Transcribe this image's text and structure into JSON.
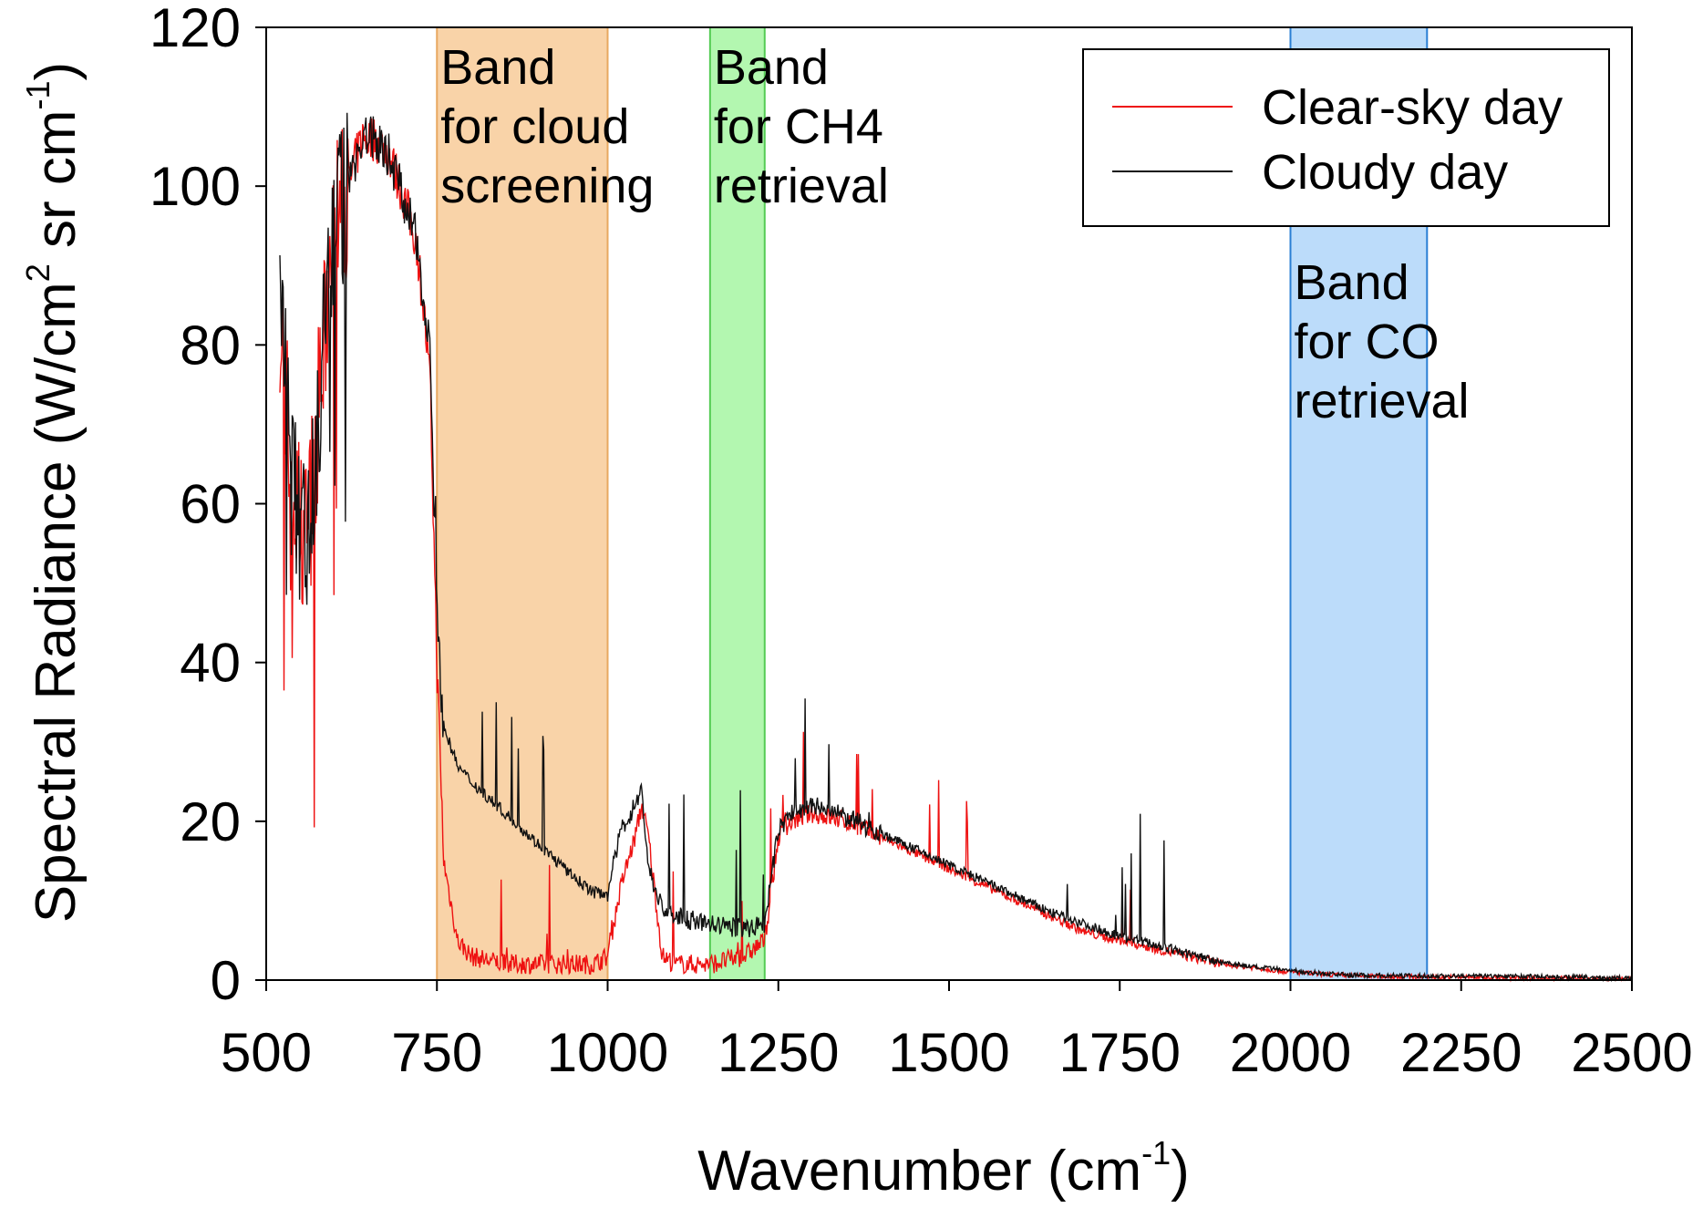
{
  "chart_data": {
    "type": "line",
    "title": "",
    "xlabel": "Wavenumber (cm",
    "xlabel_sup": "-1",
    "xlabel_close": ")",
    "ylabel": "Spectral Radiance (W/cm",
    "ylabel_sup1": "2",
    "ylabel_mid": " sr cm",
    "ylabel_sup2": "-1",
    "ylabel_close": ")",
    "xlim": [
      500,
      2500
    ],
    "ylim": [
      0,
      120
    ],
    "xticks": [
      500,
      750,
      1000,
      1250,
      1500,
      1750,
      2000,
      2250,
      2500
    ],
    "yticks": [
      0,
      20,
      40,
      60,
      80,
      100,
      120
    ],
    "grid": false,
    "legend_position": "top-right",
    "bands": [
      {
        "name": "cloud-screening-band",
        "x0": 750,
        "x1": 1000,
        "fill": "#f9d3a8",
        "stroke": "#e8a860",
        "lines": [
          "Band",
          "for cloud",
          "screening"
        ]
      },
      {
        "name": "ch4-retrieval-band",
        "x0": 1150,
        "x1": 1230,
        "fill": "#b3f7b0",
        "stroke": "#55cc55",
        "lines": [
          "Band",
          "for CH4",
          "retrieval"
        ]
      },
      {
        "name": "co-retrieval-band",
        "x0": 2000,
        "x1": 2200,
        "fill": "#bcdcfa",
        "stroke": "#2a7fd4",
        "lines": [
          "Band",
          "for CO",
          "retrieval"
        ]
      }
    ],
    "series": [
      {
        "name": "Clear-sky day",
        "color": "#ee1111",
        "x": [
          520,
          540,
          560,
          580,
          600,
          620,
          640,
          660,
          680,
          700,
          720,
          730,
          740,
          750,
          760,
          780,
          800,
          850,
          900,
          950,
          980,
          1000,
          1020,
          1040,
          1050,
          1060,
          1080,
          1100,
          1150,
          1200,
          1230,
          1250,
          1270,
          1300,
          1350,
          1400,
          1450,
          1500,
          1550,
          1600,
          1650,
          1700,
          1750,
          1800,
          1850,
          1900,
          1950,
          2000,
          2050,
          2100,
          2200,
          2300,
          2400,
          2500
        ],
        "y": [
          85,
          60,
          55,
          75,
          95,
          100,
          106,
          106,
          104,
          99,
          93,
          85,
          75,
          40,
          15,
          5,
          3,
          2,
          2,
          2,
          2,
          3,
          12,
          18,
          22,
          18,
          3,
          2,
          2,
          3,
          5,
          18,
          20,
          21,
          20,
          18,
          16,
          14,
          12,
          10,
          8,
          6,
          5,
          4,
          3,
          2,
          1.5,
          1,
          0.7,
          0.5,
          0.4,
          0.3,
          0.2,
          0.1
        ]
      },
      {
        "name": "Cloudy day",
        "color": "#111111",
        "x": [
          520,
          540,
          560,
          580,
          600,
          620,
          640,
          660,
          680,
          700,
          720,
          730,
          740,
          750,
          760,
          780,
          800,
          850,
          900,
          950,
          980,
          1000,
          1020,
          1040,
          1050,
          1060,
          1080,
          1100,
          1150,
          1200,
          1230,
          1250,
          1270,
          1300,
          1350,
          1400,
          1450,
          1500,
          1550,
          1600,
          1650,
          1700,
          1750,
          1800,
          1850,
          1900,
          1950,
          2000,
          2050,
          2100,
          2200,
          2300,
          2400,
          2500
        ],
        "y": [
          85,
          60,
          55,
          75,
          95,
          100,
          106,
          106,
          104,
          99,
          93,
          87,
          80,
          45,
          32,
          27,
          25,
          21,
          17,
          13,
          11,
          11,
          19,
          22,
          24,
          14,
          9,
          8,
          7,
          6.5,
          7,
          19,
          21,
          22,
          20.5,
          18.5,
          16.5,
          14.5,
          12.5,
          10.5,
          8.5,
          7,
          5.5,
          4.5,
          3.3,
          2.3,
          1.6,
          1.2,
          0.8,
          0.6,
          0.5,
          0.5,
          0.4,
          0.2
        ]
      }
    ]
  },
  "legend": {
    "items": [
      {
        "label": "Clear-sky day",
        "color": "#ee1111"
      },
      {
        "label": "Cloudy day",
        "color": "#111111"
      }
    ]
  }
}
